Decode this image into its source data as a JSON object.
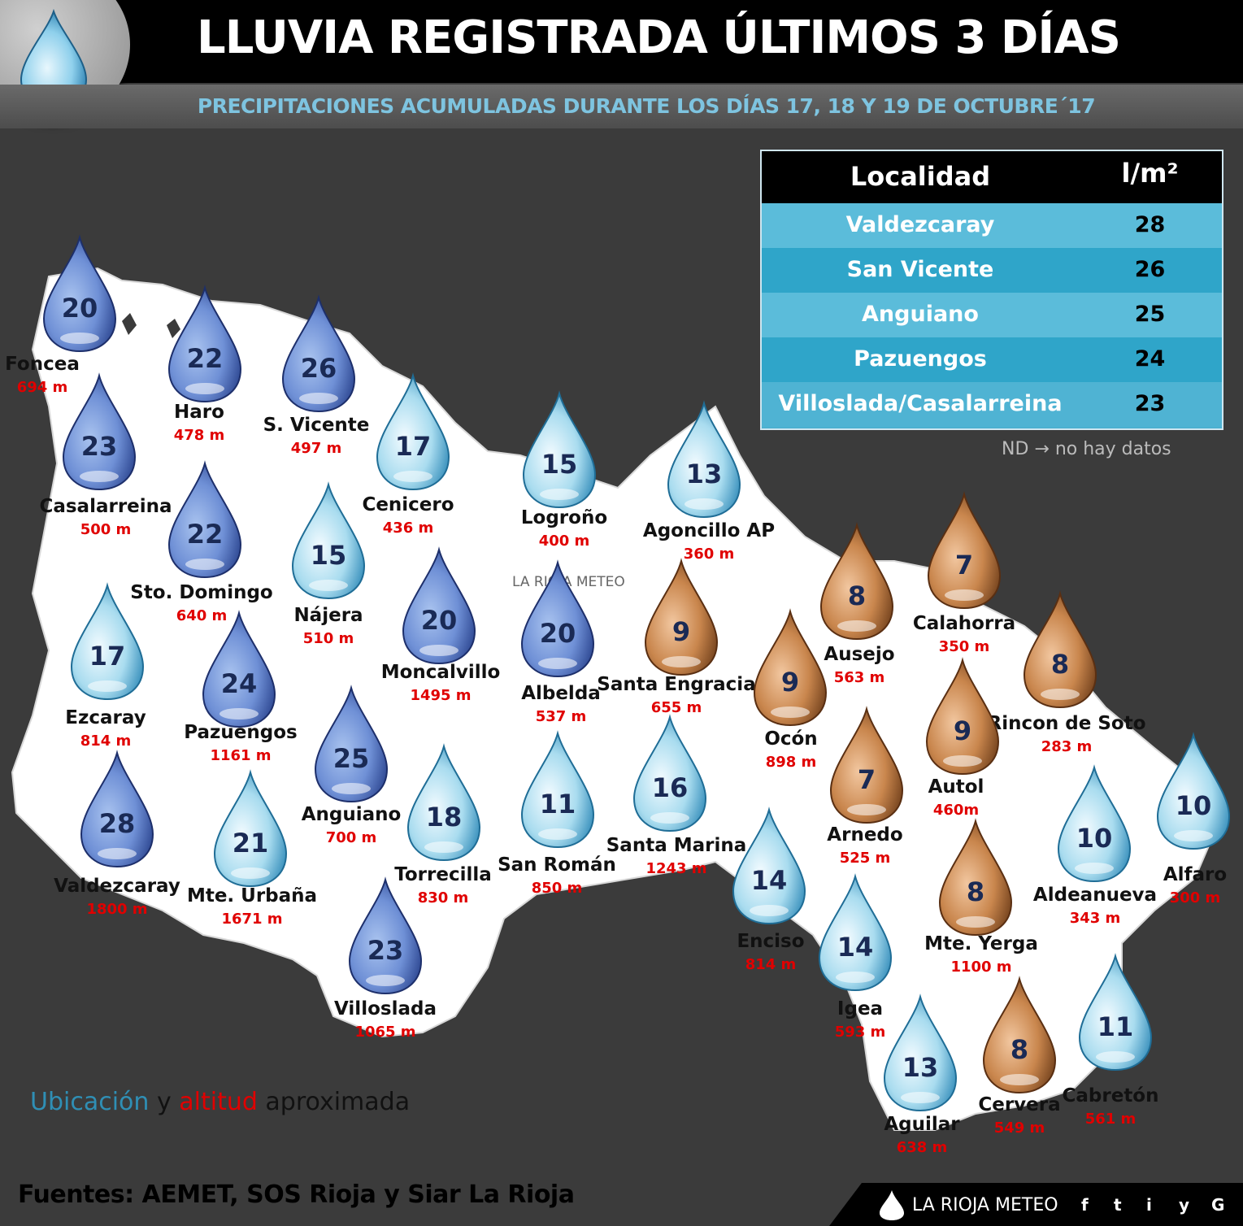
{
  "header": {
    "title": "LLUVIA REGISTRADA ÚLTIMOS 3 DÍAS",
    "subtitle": "PRECIPITACIONES ACUMULADAS DURANTE LOS DÍAS 17, 18 Y 19 DE OCTUBRE´17"
  },
  "ranking": {
    "col_locality": "Localidad",
    "col_unit": "l/m²",
    "rows": [
      {
        "name": "Valdezcaray",
        "value": "28"
      },
      {
        "name": "San Vicente",
        "value": "26"
      },
      {
        "name": "Anguiano",
        "value": "25"
      },
      {
        "name": "Pazuengos",
        "value": "24"
      },
      {
        "name": "Villoslada/Casalarreina",
        "value": "23"
      }
    ],
    "row_colors": [
      "#5bbcda",
      "#2fa5c9",
      "#5bbcda",
      "#2fa5c9",
      "#4fb3d3"
    ]
  },
  "nd_note": "ND → no hay datos",
  "legend": {
    "part1": "Ubicación",
    "part2": " y ",
    "part3": "altitud",
    "part4": " aproximada"
  },
  "legend_colors": {
    "ubicacion": "#2f8fb5",
    "altitud": "#e00000"
  },
  "sources": "Fuentes: AEMET, SOS Rioja y Siar La Rioja",
  "brand": "LA RIOJA METEO",
  "watermark": "LA RIOJA METEO",
  "social": [
    "f",
    "t",
    "i",
    "y",
    "G"
  ],
  "drop_colors": {
    "blue": "#6f90d6",
    "light": "#a9dcef",
    "brown": "#c9864d"
  },
  "stations": [
    {
      "name": "Foncea",
      "alt": "694 m",
      "value": "20",
      "type": "blue"
    },
    {
      "name": "Haro",
      "alt": "478 m",
      "value": "22",
      "type": "blue"
    },
    {
      "name": "S. Vicente",
      "alt": "497 m",
      "value": "26",
      "type": "blue"
    },
    {
      "name": "Casalarreina",
      "alt": "500 m",
      "value": "23",
      "type": "blue"
    },
    {
      "name": "Cenicero",
      "alt": "436 m",
      "value": "17",
      "type": "light"
    },
    {
      "name": "Logroño",
      "alt": "400 m",
      "value": "15",
      "type": "light"
    },
    {
      "name": "Agoncillo AP",
      "alt": "360 m",
      "value": "13",
      "type": "light"
    },
    {
      "name": "Sto. Domingo",
      "alt": "640 m",
      "value": "22",
      "type": "blue"
    },
    {
      "name": "Nájera",
      "alt": "510 m",
      "value": "15",
      "type": "light"
    },
    {
      "name": "Moncalvillo",
      "alt": "1495 m",
      "value": "20",
      "type": "blue"
    },
    {
      "name": "Albelda",
      "alt": "537 m",
      "value": "20",
      "type": "blue"
    },
    {
      "name": "Santa Engracia",
      "alt": "655 m",
      "value": "9",
      "type": "brown"
    },
    {
      "name": "Ausejo",
      "alt": "563 m",
      "value": "8",
      "type": "brown"
    },
    {
      "name": "Calahorra",
      "alt": "350 m",
      "value": "7",
      "type": "brown"
    },
    {
      "name": "Ezcaray",
      "alt": "814 m",
      "value": "17",
      "type": "light"
    },
    {
      "name": "Pazuengos",
      "alt": "1161 m",
      "value": "24",
      "type": "blue"
    },
    {
      "name": "Ocón",
      "alt": "898 m",
      "value": "9",
      "type": "brown"
    },
    {
      "name": "Rincon de Soto",
      "alt": "283 m",
      "value": "8",
      "type": "brown"
    },
    {
      "name": "Anguiano",
      "alt": "700 m",
      "value": "25",
      "type": "blue"
    },
    {
      "name": "Autol",
      "alt": "460m",
      "value": "9",
      "type": "brown"
    },
    {
      "name": "Valdezcaray",
      "alt": "1800 m",
      "value": "28",
      "type": "blue"
    },
    {
      "name": "Mte. Urbaña",
      "alt": "1671 m",
      "value": "21",
      "type": "light"
    },
    {
      "name": "Torrecilla",
      "alt": "830 m",
      "value": "18",
      "type": "light"
    },
    {
      "name": "San Román",
      "alt": "850 m",
      "value": "11",
      "type": "light"
    },
    {
      "name": "Santa Marina",
      "alt": "1243 m",
      "value": "16",
      "type": "light"
    },
    {
      "name": "Arnedo",
      "alt": "525 m",
      "value": "7",
      "type": "brown"
    },
    {
      "name": "Alfaro",
      "alt": "300 m",
      "value": "10",
      "type": "light"
    },
    {
      "name": "Aldeanueva",
      "alt": "343 m",
      "value": "10",
      "type": "light"
    },
    {
      "name": "Enciso",
      "alt": "814 m",
      "value": "14",
      "type": "light"
    },
    {
      "name": "Mte. Yerga",
      "alt": "1100 m",
      "value": "8",
      "type": "brown"
    },
    {
      "name": "Villoslada",
      "alt": "1065 m",
      "value": "23",
      "type": "blue"
    },
    {
      "name": "Igea",
      "alt": "593 m",
      "value": "14",
      "type": "light"
    },
    {
      "name": "Cabretón",
      "alt": "561 m",
      "value": "11",
      "type": "light"
    },
    {
      "name": "Aguilar",
      "alt": "638 m",
      "value": "13",
      "type": "light"
    },
    {
      "name": "Cervera",
      "alt": "549 m",
      "value": "8",
      "type": "brown"
    }
  ]
}
